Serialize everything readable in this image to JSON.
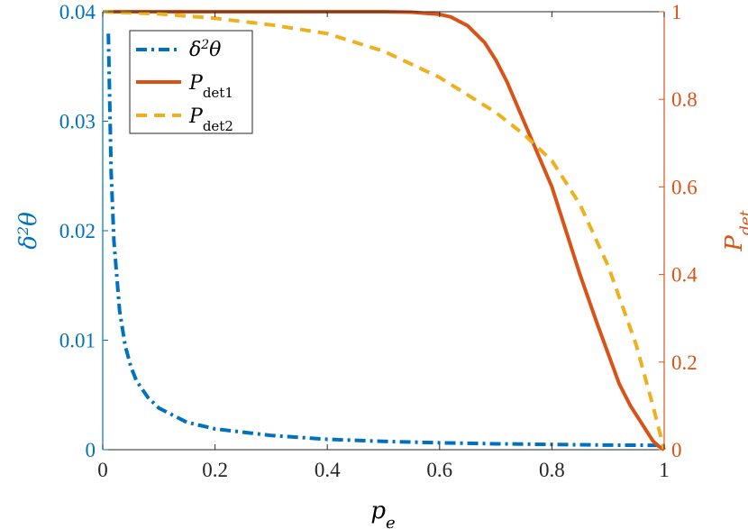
{
  "chart_data": {
    "type": "line",
    "xlabel": "p_e",
    "ylabel_left": "δ²θ",
    "ylabel_right": "P_det",
    "xlim": [
      0,
      1
    ],
    "ylim_left": [
      0,
      0.04
    ],
    "ylim_right": [
      0,
      1
    ],
    "x_ticks": [
      "0",
      "0.2",
      "0.4",
      "0.6",
      "0.8",
      "1"
    ],
    "y_left_ticks": [
      "0",
      "0.01",
      "0.02",
      "0.03",
      "0.04"
    ],
    "y_right_ticks": [
      "0",
      "0.2",
      "0.4",
      "0.6",
      "0.8",
      "1"
    ],
    "grid": false,
    "legend_position": "top-left",
    "series": [
      {
        "name": "δ²θ",
        "axis": "left",
        "color": "#0072BD",
        "style": "dashdot",
        "x": [
          0.01,
          0.015,
          0.02,
          0.03,
          0.04,
          0.05,
          0.06,
          0.08,
          0.1,
          0.15,
          0.2,
          0.3,
          0.4,
          0.5,
          0.6,
          0.7,
          0.8,
          0.9,
          1.0
        ],
        "y": [
          0.038,
          0.0253,
          0.019,
          0.0127,
          0.0095,
          0.0076,
          0.0063,
          0.0048,
          0.0038,
          0.0025,
          0.0019,
          0.0013,
          0.00095,
          0.00076,
          0.00063,
          0.00054,
          0.00048,
          0.00042,
          0.0004
        ]
      },
      {
        "name": "P_det1",
        "axis": "right",
        "color": "#D95319",
        "style": "solid",
        "x": [
          0,
          0.1,
          0.2,
          0.3,
          0.4,
          0.5,
          0.55,
          0.6,
          0.62,
          0.65,
          0.68,
          0.7,
          0.72,
          0.75,
          0.78,
          0.8,
          0.82,
          0.85,
          0.88,
          0.9,
          0.92,
          0.94,
          0.96,
          0.98,
          0.99,
          1.0
        ],
        "y": [
          1.0,
          1.0,
          1.0,
          1.0,
          1.0,
          1.0,
          0.999,
          0.994,
          0.988,
          0.968,
          0.93,
          0.89,
          0.84,
          0.75,
          0.66,
          0.6,
          0.52,
          0.4,
          0.29,
          0.22,
          0.15,
          0.1,
          0.06,
          0.02,
          0.008,
          0.0
        ]
      },
      {
        "name": "P_det2",
        "axis": "right",
        "color": "#EDB120",
        "style": "dashed",
        "x": [
          0,
          0.1,
          0.2,
          0.3,
          0.4,
          0.5,
          0.6,
          0.7,
          0.75,
          0.8,
          0.85,
          0.9,
          0.95,
          0.98,
          1.0
        ],
        "y": [
          1.0,
          0.995,
          0.985,
          0.97,
          0.95,
          0.91,
          0.85,
          0.77,
          0.72,
          0.66,
          0.56,
          0.42,
          0.24,
          0.1,
          0.0
        ]
      }
    ]
  }
}
